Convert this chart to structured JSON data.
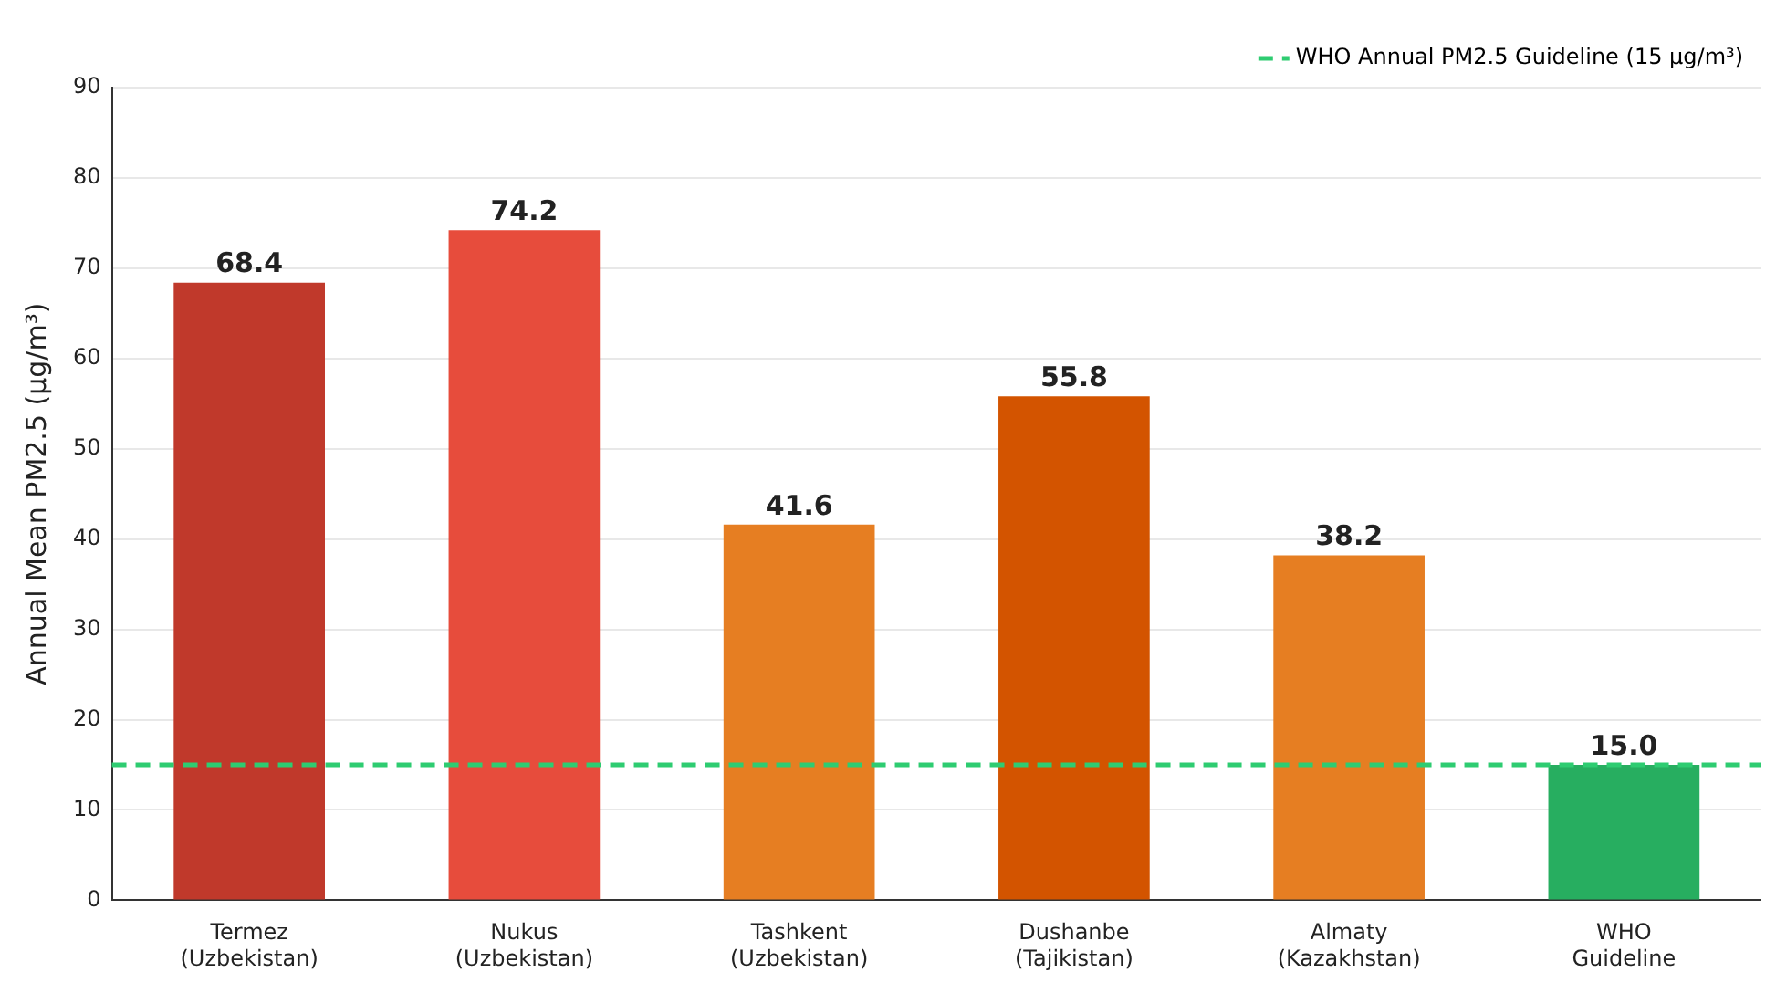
{
  "chart_data": {
    "type": "bar",
    "ylabel": "Annual Mean PM2.5 (µg/m³)",
    "categories": [
      "Termez\n(Uzbekistan)",
      "Nukus\n(Uzbekistan)",
      "Tashkent\n(Uzbekistan)",
      "Dushanbe\n(Tajikistan)",
      "Almaty\n(Kazakhstan)",
      "WHO\nGuideline"
    ],
    "values": [
      68.4,
      74.2,
      41.6,
      55.8,
      38.2,
      15.0
    ],
    "value_labels": [
      "68.4",
      "74.2",
      "41.6",
      "55.8",
      "38.2",
      "15.0"
    ],
    "colors": [
      "#c0392b",
      "#e74c3c",
      "#e67e22",
      "#d35400",
      "#e67e22",
      "#27ae60"
    ],
    "ylim": [
      0,
      90
    ],
    "yticks": [
      0,
      10,
      20,
      30,
      40,
      50,
      60,
      70,
      80,
      90
    ],
    "grid": "y",
    "legend": "top right",
    "ref_lines": [
      {
        "axis": "y",
        "value": 15,
        "label": "WHO Annual PM2.5 Guideline (15 µg/m³)",
        "color": "#2ecc71",
        "line_style": "dashed"
      }
    ]
  }
}
